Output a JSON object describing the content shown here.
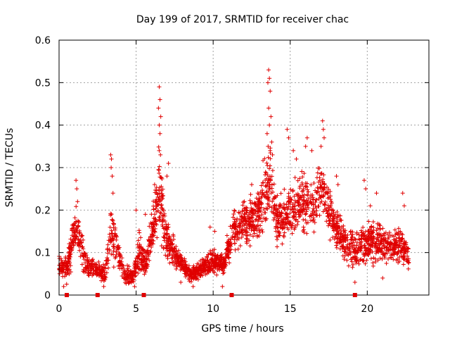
{
  "chart_data": {
    "type": "scatter",
    "title": "Day 199 of 2017, SRMTID for receiver chac",
    "xlabel": "GPS time / hours",
    "ylabel": "SRMTID / TECUs",
    "xlim": [
      0,
      24
    ],
    "ylim": [
      0,
      0.6
    ],
    "xticks": [
      0,
      5,
      10,
      15,
      20
    ],
    "xtick_labels": [
      "0",
      "5",
      "10",
      "15",
      "20"
    ],
    "yticks": [
      0,
      0.1,
      0.2,
      0.3,
      0.4,
      0.5,
      0.6
    ],
    "ytick_labels": [
      "0",
      "0.1",
      "0.2",
      "0.3",
      "0.4",
      "0.5",
      "0.6"
    ],
    "grid": true,
    "marker": "+",
    "color": "#e00000",
    "baseline_markers_x": [
      0.5,
      2.5,
      5.5,
      11.2,
      19.2
    ],
    "envelope": [
      {
        "x": 0.0,
        "base": 0.07,
        "spread": 0.03
      },
      {
        "x": 0.5,
        "base": 0.06,
        "spread": 0.03
      },
      {
        "x": 0.8,
        "base": 0.11,
        "spread": 0.05
      },
      {
        "x": 1.1,
        "base": 0.17,
        "spread": 0.06
      },
      {
        "x": 1.5,
        "base": 0.1,
        "spread": 0.04
      },
      {
        "x": 1.8,
        "base": 0.07,
        "spread": 0.02
      },
      {
        "x": 2.5,
        "base": 0.06,
        "spread": 0.02
      },
      {
        "x": 3.0,
        "base": 0.05,
        "spread": 0.02
      },
      {
        "x": 3.4,
        "base": 0.15,
        "spread": 0.08
      },
      {
        "x": 3.8,
        "base": 0.1,
        "spread": 0.04
      },
      {
        "x": 4.2,
        "base": 0.05,
        "spread": 0.02
      },
      {
        "x": 4.8,
        "base": 0.04,
        "spread": 0.02
      },
      {
        "x": 5.2,
        "base": 0.1,
        "spread": 0.05
      },
      {
        "x": 5.6,
        "base": 0.07,
        "spread": 0.03
      },
      {
        "x": 6.2,
        "base": 0.18,
        "spread": 0.06
      },
      {
        "x": 6.5,
        "base": 0.25,
        "spread": 0.1
      },
      {
        "x": 7.0,
        "base": 0.13,
        "spread": 0.05
      },
      {
        "x": 7.8,
        "base": 0.08,
        "spread": 0.02
      },
      {
        "x": 8.5,
        "base": 0.05,
        "spread": 0.02
      },
      {
        "x": 9.2,
        "base": 0.06,
        "spread": 0.02
      },
      {
        "x": 10.0,
        "base": 0.08,
        "spread": 0.03
      },
      {
        "x": 10.7,
        "base": 0.07,
        "spread": 0.02
      },
      {
        "x": 11.2,
        "base": 0.14,
        "spread": 0.04
      },
      {
        "x": 12.0,
        "base": 0.17,
        "spread": 0.05
      },
      {
        "x": 12.8,
        "base": 0.18,
        "spread": 0.05
      },
      {
        "x": 13.6,
        "base": 0.27,
        "spread": 0.1
      },
      {
        "x": 14.2,
        "base": 0.17,
        "spread": 0.06
      },
      {
        "x": 15.0,
        "base": 0.2,
        "spread": 0.06
      },
      {
        "x": 15.8,
        "base": 0.22,
        "spread": 0.07
      },
      {
        "x": 16.6,
        "base": 0.2,
        "spread": 0.06
      },
      {
        "x": 17.1,
        "base": 0.25,
        "spread": 0.07
      },
      {
        "x": 17.8,
        "base": 0.17,
        "spread": 0.05
      },
      {
        "x": 18.6,
        "base": 0.12,
        "spread": 0.04
      },
      {
        "x": 19.3,
        "base": 0.1,
        "spread": 0.04
      },
      {
        "x": 20.0,
        "base": 0.13,
        "spread": 0.05
      },
      {
        "x": 20.8,
        "base": 0.12,
        "spread": 0.05
      },
      {
        "x": 21.6,
        "base": 0.11,
        "spread": 0.04
      },
      {
        "x": 22.2,
        "base": 0.12,
        "spread": 0.05
      },
      {
        "x": 22.7,
        "base": 0.08,
        "spread": 0.03
      }
    ],
    "peaks": [
      {
        "x": 1.1,
        "y": 0.27
      },
      {
        "x": 1.15,
        "y": 0.25
      },
      {
        "x": 1.2,
        "y": 0.22
      },
      {
        "x": 3.35,
        "y": 0.33
      },
      {
        "x": 3.4,
        "y": 0.32
      },
      {
        "x": 3.38,
        "y": 0.3
      },
      {
        "x": 3.45,
        "y": 0.28
      },
      {
        "x": 3.5,
        "y": 0.24
      },
      {
        "x": 5.0,
        "y": 0.2
      },
      {
        "x": 5.6,
        "y": 0.19
      },
      {
        "x": 6.5,
        "y": 0.49
      },
      {
        "x": 6.55,
        "y": 0.46
      },
      {
        "x": 6.45,
        "y": 0.44
      },
      {
        "x": 6.6,
        "y": 0.42
      },
      {
        "x": 6.5,
        "y": 0.4
      },
      {
        "x": 6.55,
        "y": 0.38
      },
      {
        "x": 6.5,
        "y": 0.34
      },
      {
        "x": 6.58,
        "y": 0.33
      },
      {
        "x": 7.1,
        "y": 0.31
      },
      {
        "x": 7.0,
        "y": 0.28
      },
      {
        "x": 6.2,
        "y": 0.26
      },
      {
        "x": 9.8,
        "y": 0.16
      },
      {
        "x": 10.1,
        "y": 0.15
      },
      {
        "x": 10.9,
        "y": 0.14
      },
      {
        "x": 12.5,
        "y": 0.26
      },
      {
        "x": 12.9,
        "y": 0.24
      },
      {
        "x": 13.6,
        "y": 0.53
      },
      {
        "x": 13.65,
        "y": 0.51
      },
      {
        "x": 13.55,
        "y": 0.5
      },
      {
        "x": 13.7,
        "y": 0.48
      },
      {
        "x": 13.6,
        "y": 0.44
      },
      {
        "x": 13.75,
        "y": 0.42
      },
      {
        "x": 13.65,
        "y": 0.4
      },
      {
        "x": 13.5,
        "y": 0.38
      },
      {
        "x": 13.8,
        "y": 0.36
      },
      {
        "x": 13.7,
        "y": 0.34
      },
      {
        "x": 13.85,
        "y": 0.33
      },
      {
        "x": 14.8,
        "y": 0.39
      },
      {
        "x": 14.9,
        "y": 0.37
      },
      {
        "x": 15.2,
        "y": 0.34
      },
      {
        "x": 15.4,
        "y": 0.32
      },
      {
        "x": 16.1,
        "y": 0.37
      },
      {
        "x": 16.0,
        "y": 0.35
      },
      {
        "x": 16.4,
        "y": 0.34
      },
      {
        "x": 17.1,
        "y": 0.41
      },
      {
        "x": 17.15,
        "y": 0.39
      },
      {
        "x": 17.2,
        "y": 0.37
      },
      {
        "x": 17.0,
        "y": 0.35
      },
      {
        "x": 18.0,
        "y": 0.28
      },
      {
        "x": 18.1,
        "y": 0.26
      },
      {
        "x": 19.8,
        "y": 0.27
      },
      {
        "x": 19.9,
        "y": 0.25
      },
      {
        "x": 20.6,
        "y": 0.24
      },
      {
        "x": 20.2,
        "y": 0.21
      },
      {
        "x": 22.3,
        "y": 0.24
      },
      {
        "x": 22.4,
        "y": 0.21
      },
      {
        "x": 0.3,
        "y": 0.02
      },
      {
        "x": 2.9,
        "y": 0.02
      },
      {
        "x": 4.9,
        "y": 0.02
      },
      {
        "x": 10.6,
        "y": 0.02
      },
      {
        "x": 19.2,
        "y": 0.03
      },
      {
        "x": 21.0,
        "y": 0.04
      },
      {
        "x": 8.7,
        "y": 0.02
      },
      {
        "x": 7.9,
        "y": 0.03
      }
    ],
    "n_points": 2600
  }
}
